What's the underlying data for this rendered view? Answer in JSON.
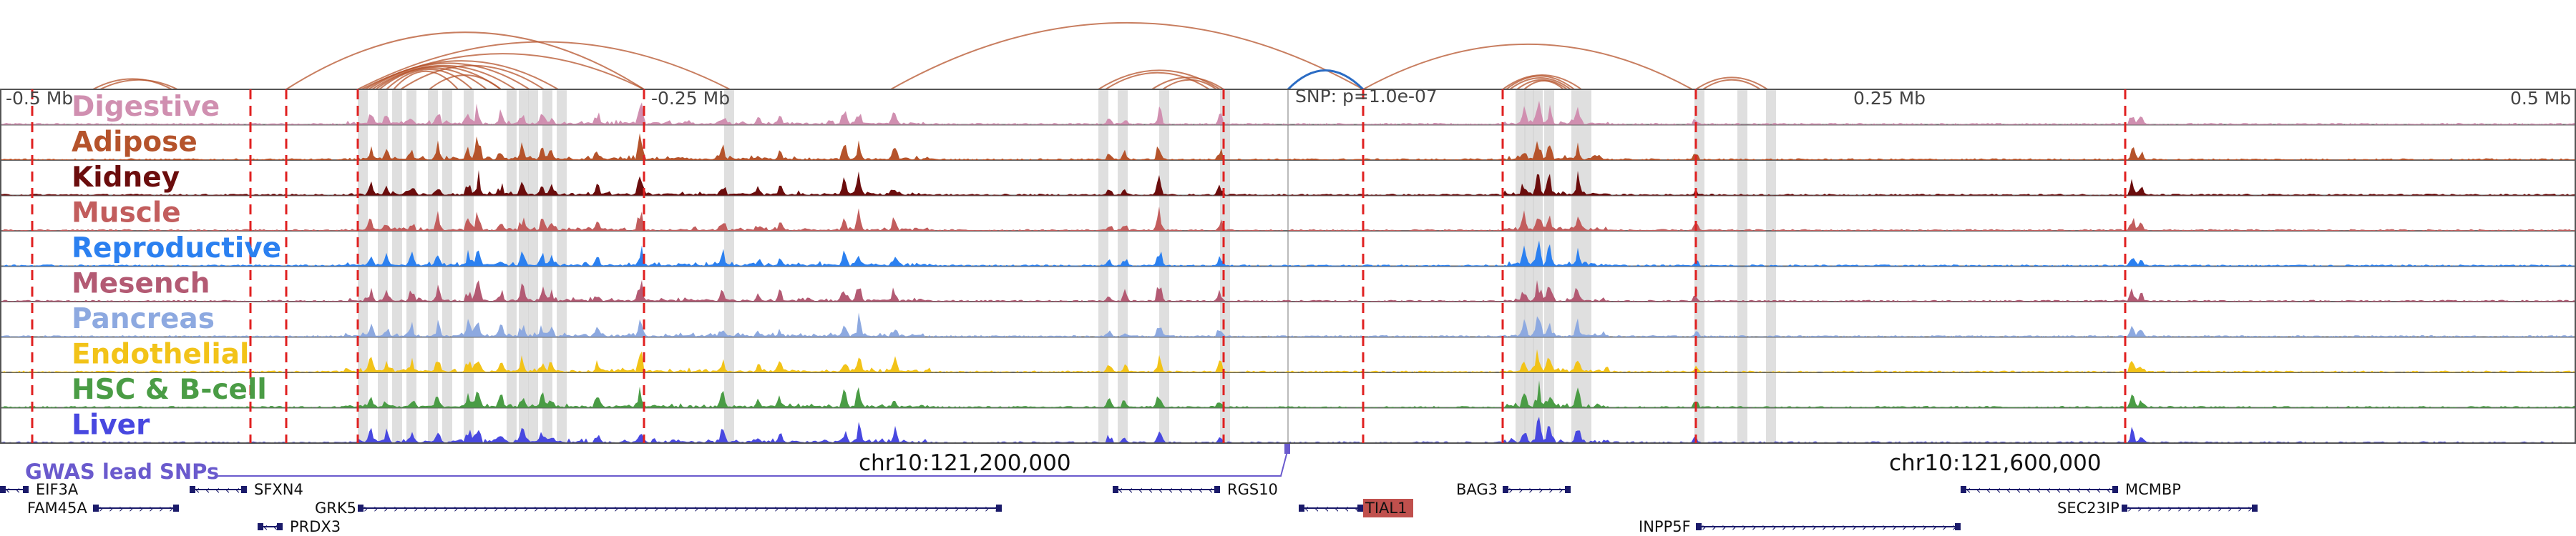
{
  "figure": {
    "axis_labels": [
      {
        "text": "-0.5 Mb",
        "pos_mb": -0.5
      },
      {
        "text": "-0.25 Mb",
        "pos_mb": -0.25
      },
      {
        "text": "0.25 Mb",
        "pos_mb": 0.25
      },
      {
        "text": "0.5 Mb",
        "pos_mb": 0.5
      }
    ],
    "snp_label": "SNP: p=1.0e-07",
    "gwas_label": "GWAS lead SNPs",
    "coord_labels": [
      "chr10:121,200,000",
      "chr10:121,600,000"
    ]
  },
  "tracks": [
    {
      "name": "Digestive",
      "color": "#d08fb0"
    },
    {
      "name": "Adipose",
      "color": "#b5532b"
    },
    {
      "name": "Kidney",
      "color": "#6b0d0d"
    },
    {
      "name": "Muscle",
      "color": "#c25d5d"
    },
    {
      "name": "Reproductive",
      "color": "#2b80f0"
    },
    {
      "name": "Mesench",
      "color": "#b35a73"
    },
    {
      "name": "Pancreas",
      "color": "#8da9e0"
    },
    {
      "name": "Endothelial",
      "color": "#f2c318"
    },
    {
      "name": "HSC & B-cell",
      "color": "#4a9c45"
    },
    {
      "name": "Liver",
      "color": "#4848e0"
    }
  ],
  "genes": [
    {
      "name": "EIF3A",
      "strand": "-"
    },
    {
      "name": "FAM45A",
      "strand": "+"
    },
    {
      "name": "SFXN4",
      "strand": "-"
    },
    {
      "name": "GRK5",
      "strand": "+"
    },
    {
      "name": "PRDX3",
      "strand": "-"
    },
    {
      "name": "RGS10",
      "strand": "-"
    },
    {
      "name": "TIAL1",
      "strand": "-",
      "highlight": true
    },
    {
      "name": "BAG3",
      "strand": "+"
    },
    {
      "name": "INPP5F",
      "strand": "+"
    },
    {
      "name": "MCMBP",
      "strand": "-"
    },
    {
      "name": "SEC23IP",
      "strand": "+"
    }
  ],
  "colors": {
    "grid_red": "#e02020",
    "gwas": "#6a5acd",
    "highlight_gene": "#c0504d",
    "loop": "#b5532b",
    "snp_loop": "#2b6cc4"
  }
}
